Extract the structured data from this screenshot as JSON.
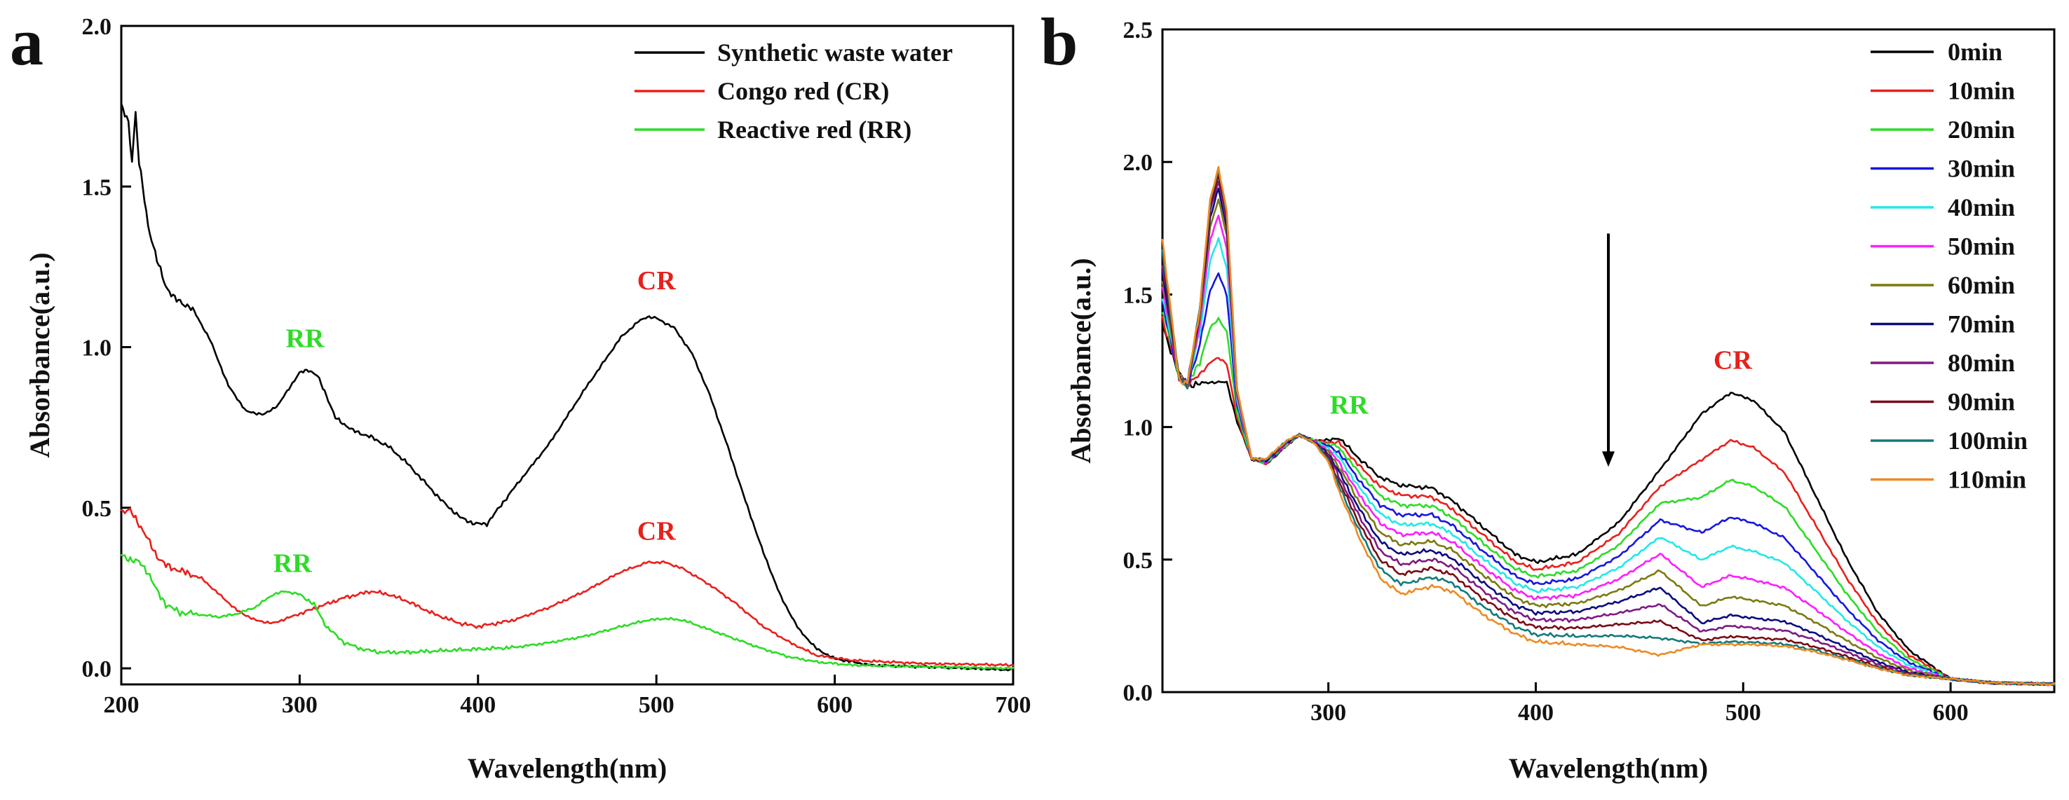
{
  "chart_data": [
    {
      "type": "line",
      "panel_label": "a",
      "xlabel": "Wavelength(nm)",
      "ylabel": "Absorbance(a.u.)",
      "xlim": [
        200,
        700
      ],
      "ylim": [
        -0.05,
        2.0
      ],
      "xticks": [
        200,
        300,
        400,
        500,
        600,
        700
      ],
      "yticks": [
        0.0,
        0.5,
        1.0,
        1.5,
        2.0
      ],
      "legend_position": "top-right",
      "series": [
        {
          "name": "Synthetic waste water",
          "color": "#000000",
          "points": [
            [
              200,
              1.75
            ],
            [
              204,
              1.7
            ],
            [
              206,
              1.58
            ],
            [
              208,
              1.73
            ],
            [
              210,
              1.57
            ],
            [
              212,
              1.5
            ],
            [
              215,
              1.38
            ],
            [
              220,
              1.27
            ],
            [
              225,
              1.19
            ],
            [
              230,
              1.15
            ],
            [
              240,
              1.12
            ],
            [
              250,
              1.02
            ],
            [
              260,
              0.88
            ],
            [
              270,
              0.8
            ],
            [
              280,
              0.79
            ],
            [
              288,
              0.82
            ],
            [
              295,
              0.88
            ],
            [
              300,
              0.92
            ],
            [
              305,
              0.93
            ],
            [
              310,
              0.91
            ],
            [
              315,
              0.85
            ],
            [
              320,
              0.78
            ],
            [
              330,
              0.74
            ],
            [
              340,
              0.72
            ],
            [
              350,
              0.69
            ],
            [
              360,
              0.64
            ],
            [
              370,
              0.58
            ],
            [
              380,
              0.52
            ],
            [
              390,
              0.47
            ],
            [
              398,
              0.45
            ],
            [
              405,
              0.45
            ],
            [
              420,
              0.56
            ],
            [
              440,
              0.7
            ],
            [
              460,
              0.87
            ],
            [
              480,
              1.03
            ],
            [
              490,
              1.08
            ],
            [
              495,
              1.095
            ],
            [
              500,
              1.09
            ],
            [
              510,
              1.06
            ],
            [
              520,
              0.98
            ],
            [
              530,
              0.85
            ],
            [
              540,
              0.69
            ],
            [
              550,
              0.52
            ],
            [
              560,
              0.36
            ],
            [
              570,
              0.22
            ],
            [
              580,
              0.12
            ],
            [
              590,
              0.06
            ],
            [
              600,
              0.03
            ],
            [
              620,
              0.01
            ],
            [
              650,
              0.005
            ],
            [
              700,
              -0.005
            ]
          ]
        },
        {
          "name": "Congo red  (CR)",
          "color": "#e8201c",
          "points": [
            [
              200,
              0.49
            ],
            [
              205,
              0.49
            ],
            [
              210,
              0.45
            ],
            [
              215,
              0.4
            ],
            [
              220,
              0.35
            ],
            [
              225,
              0.32
            ],
            [
              235,
              0.3
            ],
            [
              245,
              0.28
            ],
            [
              255,
              0.23
            ],
            [
              265,
              0.18
            ],
            [
              275,
              0.15
            ],
            [
              285,
              0.14
            ],
            [
              295,
              0.16
            ],
            [
              310,
              0.19
            ],
            [
              325,
              0.22
            ],
            [
              340,
              0.24
            ],
            [
              350,
              0.23
            ],
            [
              360,
              0.21
            ],
            [
              375,
              0.17
            ],
            [
              390,
              0.14
            ],
            [
              400,
              0.13
            ],
            [
              420,
              0.15
            ],
            [
              440,
              0.19
            ],
            [
              460,
              0.24
            ],
            [
              480,
              0.3
            ],
            [
              495,
              0.33
            ],
            [
              505,
              0.33
            ],
            [
              515,
              0.31
            ],
            [
              530,
              0.26
            ],
            [
              545,
              0.2
            ],
            [
              560,
              0.13
            ],
            [
              575,
              0.08
            ],
            [
              590,
              0.04
            ],
            [
              610,
              0.025
            ],
            [
              650,
              0.015
            ],
            [
              700,
              0.01
            ]
          ]
        },
        {
          "name": "Reactive red (RR)",
          "color": "#2ddc26",
          "points": [
            [
              200,
              0.35
            ],
            [
              205,
              0.34
            ],
            [
              210,
              0.33
            ],
            [
              215,
              0.3
            ],
            [
              220,
              0.24
            ],
            [
              225,
              0.2
            ],
            [
              232,
              0.175
            ],
            [
              240,
              0.17
            ],
            [
              255,
              0.16
            ],
            [
              265,
              0.17
            ],
            [
              275,
              0.19
            ],
            [
              285,
              0.23
            ],
            [
              292,
              0.24
            ],
            [
              300,
              0.23
            ],
            [
              308,
              0.2
            ],
            [
              315,
              0.13
            ],
            [
              325,
              0.08
            ],
            [
              335,
              0.06
            ],
            [
              345,
              0.05
            ],
            [
              360,
              0.05
            ],
            [
              380,
              0.055
            ],
            [
              400,
              0.06
            ],
            [
              420,
              0.065
            ],
            [
              440,
              0.08
            ],
            [
              460,
              0.1
            ],
            [
              480,
              0.13
            ],
            [
              495,
              0.15
            ],
            [
              505,
              0.155
            ],
            [
              515,
              0.15
            ],
            [
              530,
              0.12
            ],
            [
              545,
              0.09
            ],
            [
              560,
              0.06
            ],
            [
              575,
              0.035
            ],
            [
              590,
              0.02
            ],
            [
              610,
              0.01
            ],
            [
              650,
              0.005
            ],
            [
              700,
              0.0
            ]
          ]
        }
      ],
      "annotations": [
        {
          "text": "CR",
          "x": 500,
          "y": 1.18,
          "color": "#e8201c"
        },
        {
          "text": "RR",
          "x": 303,
          "y": 1.0,
          "color": "#2ddc26"
        },
        {
          "text": "CR",
          "x": 500,
          "y": 0.4,
          "color": "#e8201c"
        },
        {
          "text": "RR",
          "x": 296,
          "y": 0.3,
          "color": "#2ddc26"
        }
      ]
    },
    {
      "type": "line",
      "panel_label": "b",
      "xlabel": "Wavelength(nm)",
      "ylabel": "Absorbance(a.u.)",
      "xlim": [
        220,
        650
      ],
      "ylim": [
        0.0,
        2.5
      ],
      "xticks": [
        300,
        400,
        500,
        600
      ],
      "yticks": [
        0.0,
        0.5,
        1.0,
        1.5,
        2.0,
        2.5
      ],
      "legend_position": "top-right",
      "series": [
        {
          "name": "0min",
          "color": "#000000",
          "peak245": 1.17,
          "cr_peak": 1.13
        },
        {
          "name": "10min",
          "color": "#e8201c",
          "peak245": 1.26,
          "cr_peak": 0.95
        },
        {
          "name": "20min",
          "color": "#2ddc26",
          "peak245": 1.41,
          "cr_peak": 0.8
        },
        {
          "name": "30min",
          "color": "#1616e0",
          "peak245": 1.58,
          "cr_peak": 0.66
        },
        {
          "name": "40min",
          "color": "#22e8e8",
          "peak245": 1.71,
          "cr_peak": 0.55
        },
        {
          "name": "50min",
          "color": "#ff1cff",
          "peak245": 1.8,
          "cr_peak": 0.44
        },
        {
          "name": "60min",
          "color": "#7a7a10",
          "peak245": 1.86,
          "cr_peak": 0.36
        },
        {
          "name": "70min",
          "color": "#0b0b80",
          "peak245": 1.9,
          "cr_peak": 0.29
        },
        {
          "name": "80min",
          "color": "#7f1a84",
          "peak245": 1.93,
          "cr_peak": 0.25
        },
        {
          "name": "90min",
          "color": "#7a0a14",
          "peak245": 1.95,
          "cr_peak": 0.21
        },
        {
          "name": "100min",
          "color": "#127a7a",
          "peak245": 1.97,
          "cr_peak": 0.19
        },
        {
          "name": "110min",
          "color": "#ee8a22",
          "peak245": 1.98,
          "cr_peak": 0.18
        }
      ],
      "annotations": [
        {
          "text": "RR",
          "x": 310,
          "y": 1.05,
          "color": "#2ddc26"
        },
        {
          "text": "CR",
          "x": 495,
          "y": 1.22,
          "color": "#e8201c"
        }
      ],
      "arrow": {
        "x": 435,
        "y_start": 1.73,
        "y_end": 0.85
      }
    }
  ]
}
